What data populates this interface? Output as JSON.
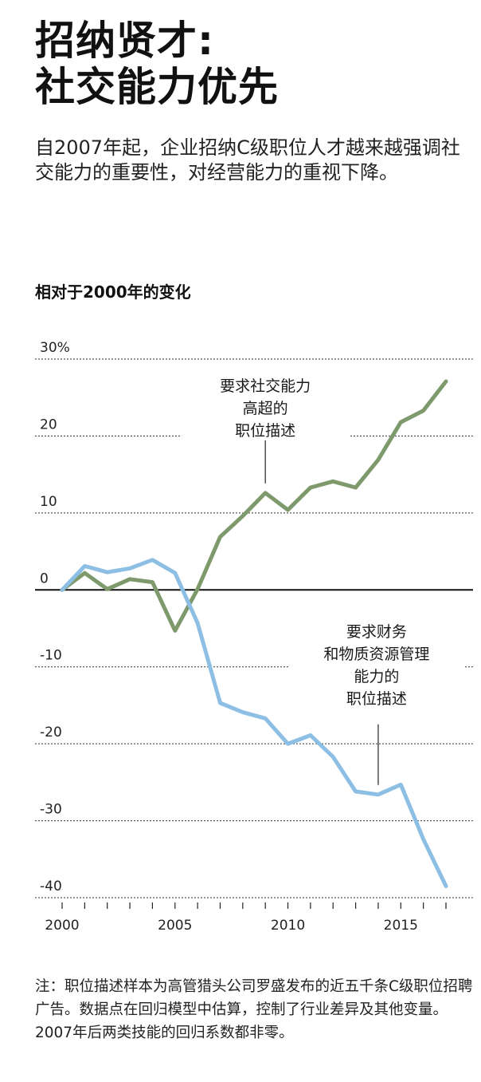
{
  "header": {
    "title_line1": "招纳贤才:",
    "title_line2": "社交能力优先",
    "subtitle": "自2007年起，企业招纳C级职位人才越来越强调社交能力的重要性，对经营能力的重视下降。"
  },
  "footnote": "注：职位描述样本为高管猎头公司罗盛发布的近五千条C级职位招聘广告。数据点在回归模型中估算，控制了行业差异及其他变量。2007年后两类技能的回归系数都非零。",
  "chart_data": {
    "type": "line",
    "title": "相对于2000年的变化",
    "xlabel": "",
    "ylabel": "",
    "xlim": [
      2000,
      2017
    ],
    "ylim": [
      -40,
      30
    ],
    "x_ticks": [
      2000,
      2005,
      2010,
      2015
    ],
    "y_ticks": [
      {
        "value": 30,
        "label": "30%"
      },
      {
        "value": 20,
        "label": "20"
      },
      {
        "value": 10,
        "label": "10"
      },
      {
        "value": 0,
        "label": "0"
      },
      {
        "value": -10,
        "label": "-10"
      },
      {
        "value": -20,
        "label": "-20"
      },
      {
        "value": -30,
        "label": "-30"
      },
      {
        "value": -40,
        "label": "-40"
      }
    ],
    "grid": "dotted horizontal",
    "x": [
      2000,
      2001,
      2002,
      2003,
      2004,
      2005,
      2006,
      2007,
      2008,
      2009,
      2010,
      2011,
      2012,
      2013,
      2014,
      2015,
      2016,
      2017
    ],
    "series": [
      {
        "name": "要求社交能力高超的职位描述",
        "color": "#7e9a6c",
        "values": [
          0,
          2.2,
          0.1,
          1.4,
          1.0,
          -5.3,
          0.1,
          6.9,
          9.6,
          12.6,
          10.4,
          13.3,
          14.1,
          13.3,
          16.9,
          21.8,
          23.3,
          27.1
        ]
      },
      {
        "name": "要求财务和物质资源管理能力的职位描述",
        "color": "#8dbfe4",
        "values": [
          0,
          3.1,
          2.3,
          2.8,
          3.9,
          2.2,
          -4.3,
          -14.7,
          -15.9,
          -16.7,
          -20.0,
          -18.9,
          -21.7,
          -26.2,
          -26.6,
          -25.3,
          -32.4,
          -38.5
        ]
      }
    ],
    "annotations": [
      {
        "series": 0,
        "lines": [
          "要求社交能力",
          "高超的",
          "职位描述"
        ]
      },
      {
        "series": 1,
        "lines": [
          "要求财务",
          "和物质资源管理",
          "能力的",
          "职位描述"
        ]
      }
    ]
  }
}
